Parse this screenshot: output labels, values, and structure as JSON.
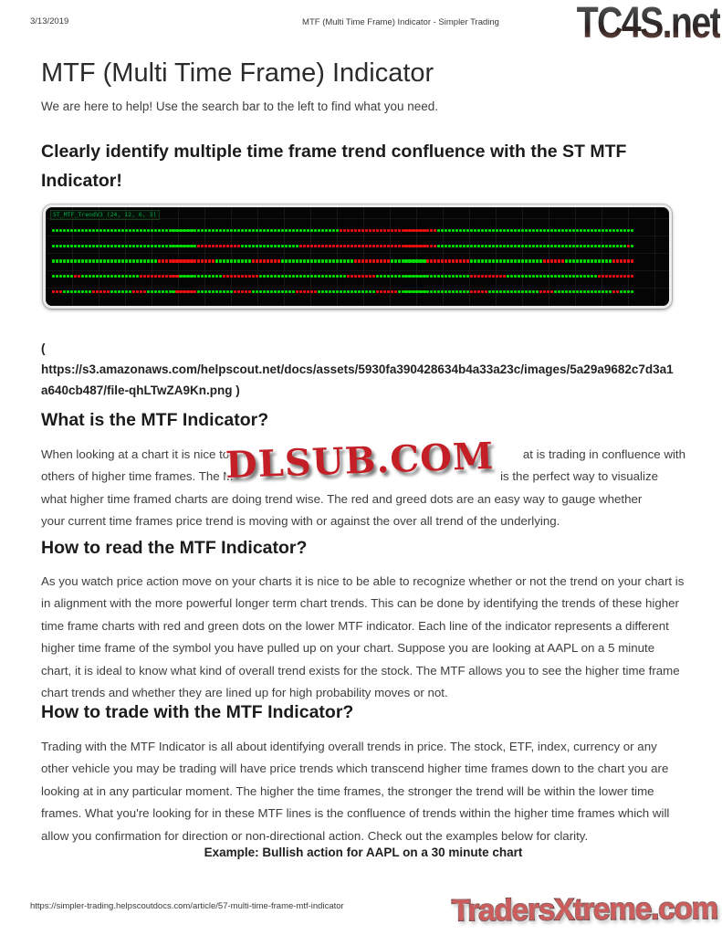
{
  "page": {
    "print_header": {
      "date": "3/13/2019",
      "title": "MTF (Multi Time Frame) Indicator - Simpler Trading"
    },
    "watermarks": {
      "top_right_logo": "TC4S.net",
      "center_stamp": "DLSUB.COM",
      "bottom_right_logo": "TradersXtreme.com"
    },
    "article": {
      "title": "MTF (Multi Time Frame) Indicator",
      "intro": "We are here to help! Use the search bar to the left to find what you need.",
      "headline": "Clearly identify multiple time frame trend confluence with the ST MTF Indicator!",
      "image_link": {
        "open_paren": "(",
        "url_line1": "https://s3.amazonaws.com/helpscout.net/docs/assets/5930fa390428634b4a33a23c/images/5a29a9682c7d3a1",
        "url_line2": "a640cb487/file-qhLTwZA9Kn.png )"
      },
      "sections": [
        {
          "heading": "What is the MTF Indicator?",
          "lines": [
            {
              "left": "When looking at a chart it is nice to",
              "right": "at is trading in confluence with"
            },
            {
              "left": "others of higher time frames. The M",
              "right": "is the perfect way to visualize",
              "inset": true
            },
            {
              "full": "what higher time framed charts are doing trend wise. The red and greed dots are an easy way to gauge whether"
            },
            {
              "full": "your current time frames price trend is moving with or against the over all trend of the underlying."
            }
          ]
        },
        {
          "heading": "How to read the MTF Indicator?",
          "text": "As you watch price action move on your charts it is nice to be able to recognize whether or not the trend on your chart is in alignment with the more powerful longer term chart trends. This can be done by identifying the trends of these higher time frame charts with red and green dots on the lower MTF indicator. Each line of the indicator represents a different higher time frame of the symbol you have pulled up on your chart. Suppose you are looking at AAPL on a 5 minute chart, it is ideal to know what kind of overall trend exists for the stock. The MTF allows you to see the higher time frame chart trends and whether they are lined up for high probability moves or not."
        },
        {
          "heading": "How to trade with the MTF Indicator?",
          "text": "Trading with the MTF Indicator is all about identifying overall trends in price. The stock, ETF, index, currency or any other vehicle you may be trading will have price trends which transcend higher time frames down to the chart you are looking at in any particular moment. The higher the time frames, the stronger the trend will be within the lower time frames. What you're looking for in these MTF lines is the confluence of trends within the higher time frames which will allow you confirmation for direction or non-directional action. Check out the examples below for clarity."
        }
      ],
      "example_caption": "Example: Bullish action for AAPL on a 30 minute chart"
    },
    "print_footer": {
      "url": "https://simpler-trading.helpscoutdocs.com/article/57-multi-time-frame-mtf-indicator"
    }
  },
  "chart_data": {
    "type": "dot-strip",
    "title": "ST MTF indicator panel — rows of trend dots for higher time frames",
    "label": "ST_MTF_TrendV3 (24, 12, 6, 3)",
    "colors": {
      "up": "#00dd00",
      "down": "#ee0f0f",
      "background": "#050505"
    },
    "rows": [
      [
        [
          "g",
          79
        ],
        [
          "r",
          27
        ],
        [
          "g",
          54
        ]
      ],
      [
        [
          "g",
          40
        ],
        [
          "r",
          12
        ],
        [
          "g",
          16
        ],
        [
          "r",
          38
        ],
        [
          "g",
          52
        ],
        [
          "r",
          1
        ],
        [
          "g",
          1
        ]
      ],
      [
        [
          "g",
          29
        ],
        [
          "r",
          16
        ],
        [
          "g",
          10
        ],
        [
          "r",
          8
        ],
        [
          "g",
          20
        ],
        [
          "r",
          10
        ],
        [
          "g",
          10
        ],
        [
          "r",
          12
        ],
        [
          "g",
          20
        ],
        [
          "r",
          6
        ],
        [
          "g",
          13
        ],
        [
          "r",
          6
        ]
      ],
      [
        [
          "g",
          6
        ],
        [
          "r",
          2
        ],
        [
          "g",
          16
        ],
        [
          "r",
          11
        ],
        [
          "g",
          12
        ],
        [
          "r",
          10
        ],
        [
          "g",
          24
        ],
        [
          "r",
          8
        ],
        [
          "g",
          26
        ],
        [
          "r",
          10
        ],
        [
          "g",
          25
        ],
        [
          "r",
          10
        ]
      ],
      [
        [
          "r",
          3
        ],
        [
          "g",
          8
        ],
        [
          "r",
          5
        ],
        [
          "g",
          6
        ],
        [
          "r",
          4
        ],
        [
          "g",
          8
        ],
        [
          "r",
          6
        ],
        [
          "g",
          10
        ],
        [
          "r",
          5
        ],
        [
          "g",
          12
        ],
        [
          "r",
          6
        ],
        [
          "g",
          16
        ],
        [
          "r",
          6
        ],
        [
          "g",
          20
        ],
        [
          "r",
          5
        ],
        [
          "g",
          14
        ],
        [
          "r",
          4
        ],
        [
          "g",
          16
        ],
        [
          "r",
          2
        ],
        [
          "g",
          4
        ]
      ]
    ]
  }
}
